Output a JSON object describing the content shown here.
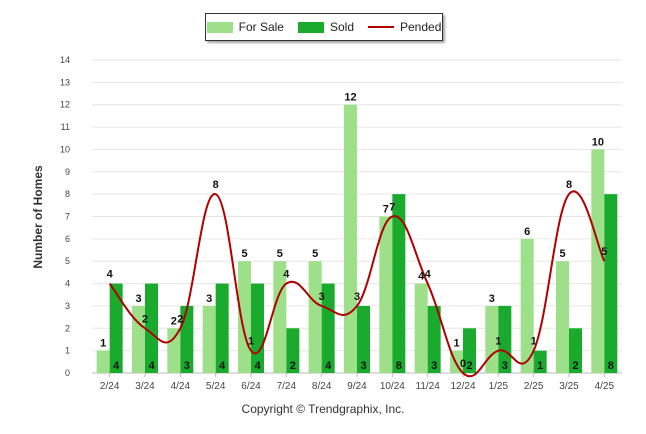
{
  "colors": {
    "for_sale": "#9ee08a",
    "sold": "#1aab2e",
    "pended": "#b00000"
  },
  "copyright": "Copyright © Trendgraphix, Inc.",
  "chart_data": {
    "type": "bar",
    "categories": [
      "2/24",
      "3/24",
      "4/24",
      "5/24",
      "6/24",
      "7/24",
      "8/24",
      "9/24",
      "10/24",
      "11/24",
      "12/24",
      "1/25",
      "2/25",
      "3/25",
      "4/25"
    ],
    "series": [
      {
        "name": "For Sale",
        "kind": "bar",
        "values": [
          1,
          3,
          2,
          3,
          5,
          5,
          5,
          12,
          7,
          4,
          1,
          3,
          6,
          5,
          10
        ]
      },
      {
        "name": "Sold",
        "kind": "bar",
        "values": [
          4,
          4,
          3,
          4,
          4,
          2,
          4,
          3,
          8,
          3,
          2,
          3,
          1,
          2,
          8
        ]
      },
      {
        "name": "Pended",
        "kind": "line",
        "values": [
          4,
          2,
          2,
          8,
          1,
          4,
          3,
          3,
          7,
          4,
          0,
          1,
          1,
          8,
          5
        ]
      }
    ],
    "ylabel": "Number of Homes",
    "xlabel": "",
    "ylim": [
      0,
      14
    ],
    "yticks": [
      0,
      1,
      2,
      3,
      4,
      5,
      6,
      7,
      8,
      9,
      10,
      11,
      12,
      13,
      14
    ],
    "grid": true,
    "legend": "top-center"
  }
}
